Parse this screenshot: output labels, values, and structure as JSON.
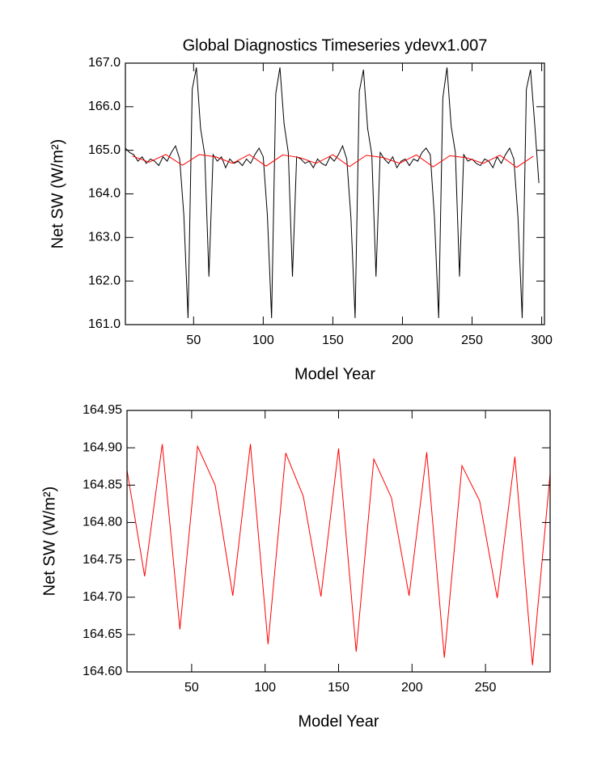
{
  "chart_data": [
    {
      "type": "line",
      "title": "Global Diagnostics Timeseries ydevx1.007",
      "xlabel": "Model Year",
      "ylabel": "Net SW (W/m²)",
      "xlim": [
        1,
        302
      ],
      "xticks": [
        50,
        100,
        150,
        200,
        250,
        300
      ],
      "ylim": [
        161,
        167
      ],
      "yticks": [
        {
          "value": 161,
          "label": "161.0"
        },
        {
          "value": 162,
          "label": "162.0"
        },
        {
          "value": 163,
          "label": "163.0"
        },
        {
          "value": 164,
          "label": "164.0"
        },
        {
          "value": 165,
          "label": "165.0"
        },
        {
          "value": 166,
          "label": "166.0"
        },
        {
          "value": 167,
          "label": "167.0"
        }
      ],
      "series": [
        {
          "color": "#000000",
          "x": [
            1,
            4,
            7,
            10,
            13,
            16,
            19,
            22,
            25,
            28,
            31,
            34,
            37,
            40,
            43,
            46,
            49,
            52,
            55,
            58,
            61,
            64,
            67,
            70,
            73,
            76,
            79,
            82,
            85,
            88,
            91,
            94,
            97,
            100,
            103,
            106,
            109,
            112,
            115,
            118,
            121,
            124,
            127,
            130,
            133,
            136,
            139,
            142,
            145,
            148,
            151,
            154,
            157,
            160,
            163,
            166,
            169,
            172,
            175,
            178,
            181,
            184,
            187,
            190,
            193,
            196,
            199,
            202,
            205,
            208,
            211,
            214,
            217,
            220,
            223,
            226,
            229,
            232,
            235,
            238,
            241,
            244,
            247,
            250,
            253,
            256,
            259,
            262,
            265,
            268,
            271,
            274,
            277,
            280,
            283,
            286,
            289,
            292,
            295,
            298
          ],
          "values": [
            165.05,
            164.95,
            164.9,
            164.75,
            164.85,
            164.7,
            164.8,
            164.75,
            164.65,
            164.85,
            164.75,
            164.95,
            165.1,
            164.8,
            163.5,
            161.15,
            166.4,
            166.9,
            165.5,
            164.9,
            162.1,
            164.9,
            164.75,
            164.85,
            164.6,
            164.8,
            164.7,
            164.75,
            164.65,
            164.8,
            164.7,
            164.9,
            165.05,
            164.85,
            163.5,
            161.15,
            166.3,
            166.9,
            165.6,
            164.95,
            162.1,
            164.85,
            164.8,
            164.7,
            164.75,
            164.6,
            164.8,
            164.7,
            164.65,
            164.85,
            164.75,
            164.9,
            165.1,
            164.8,
            163.45,
            161.15,
            166.35,
            166.85,
            165.5,
            164.9,
            162.1,
            164.95,
            164.8,
            164.7,
            164.85,
            164.6,
            164.75,
            164.8,
            164.65,
            164.8,
            164.75,
            164.95,
            165.05,
            164.9,
            163.45,
            161.15,
            166.2,
            166.9,
            165.55,
            164.95,
            162.1,
            164.9,
            164.75,
            164.8,
            164.7,
            164.65,
            164.8,
            164.75,
            164.6,
            164.85,
            164.7,
            164.9,
            165.05,
            164.8,
            163.45,
            161.15,
            166.4,
            166.85,
            165.6,
            164.25
          ]
        },
        {
          "color": "#ff0000",
          "x": [
            6,
            18,
            30,
            42,
            54,
            66,
            78,
            90,
            102,
            114,
            126,
            138,
            150,
            162,
            174,
            186,
            198,
            210,
            222,
            234,
            246,
            258,
            270,
            282,
            294
          ],
          "values": [
            164.87,
            164.728,
            164.905,
            164.657,
            164.902,
            164.85,
            164.702,
            164.905,
            164.637,
            164.893,
            164.835,
            164.701,
            164.899,
            164.627,
            164.885,
            164.833,
            164.702,
            164.894,
            164.619,
            164.876,
            164.829,
            164.699,
            164.888,
            164.609,
            164.865
          ]
        }
      ]
    },
    {
      "type": "line",
      "xlabel": "Model Year",
      "ylabel": "Net SW (W/m²)",
      "xlim": [
        6,
        294
      ],
      "xticks": [
        50,
        100,
        150,
        200,
        250
      ],
      "ylim": [
        164.6,
        164.95
      ],
      "yticks": [
        {
          "value": 164.6,
          "label": "164.60"
        },
        164.65,
        {
          "value": 164.7,
          "label": "164.70"
        },
        164.75,
        {
          "value": 164.8,
          "label": "164.80"
        },
        164.85,
        {
          "value": 164.9,
          "label": "164.90"
        },
        164.95
      ],
      "series": [
        {
          "color": "#ff0000",
          "x": [
            6,
            18,
            30,
            42,
            54,
            66,
            78,
            90,
            102,
            114,
            126,
            138,
            150,
            162,
            174,
            186,
            198,
            210,
            222,
            234,
            246,
            258,
            270,
            282,
            294
          ],
          "values": [
            164.87,
            164.728,
            164.905,
            164.657,
            164.902,
            164.85,
            164.702,
            164.905,
            164.637,
            164.893,
            164.835,
            164.701,
            164.899,
            164.627,
            164.885,
            164.833,
            164.702,
            164.894,
            164.619,
            164.876,
            164.829,
            164.699,
            164.888,
            164.609,
            164.865
          ]
        }
      ]
    }
  ]
}
